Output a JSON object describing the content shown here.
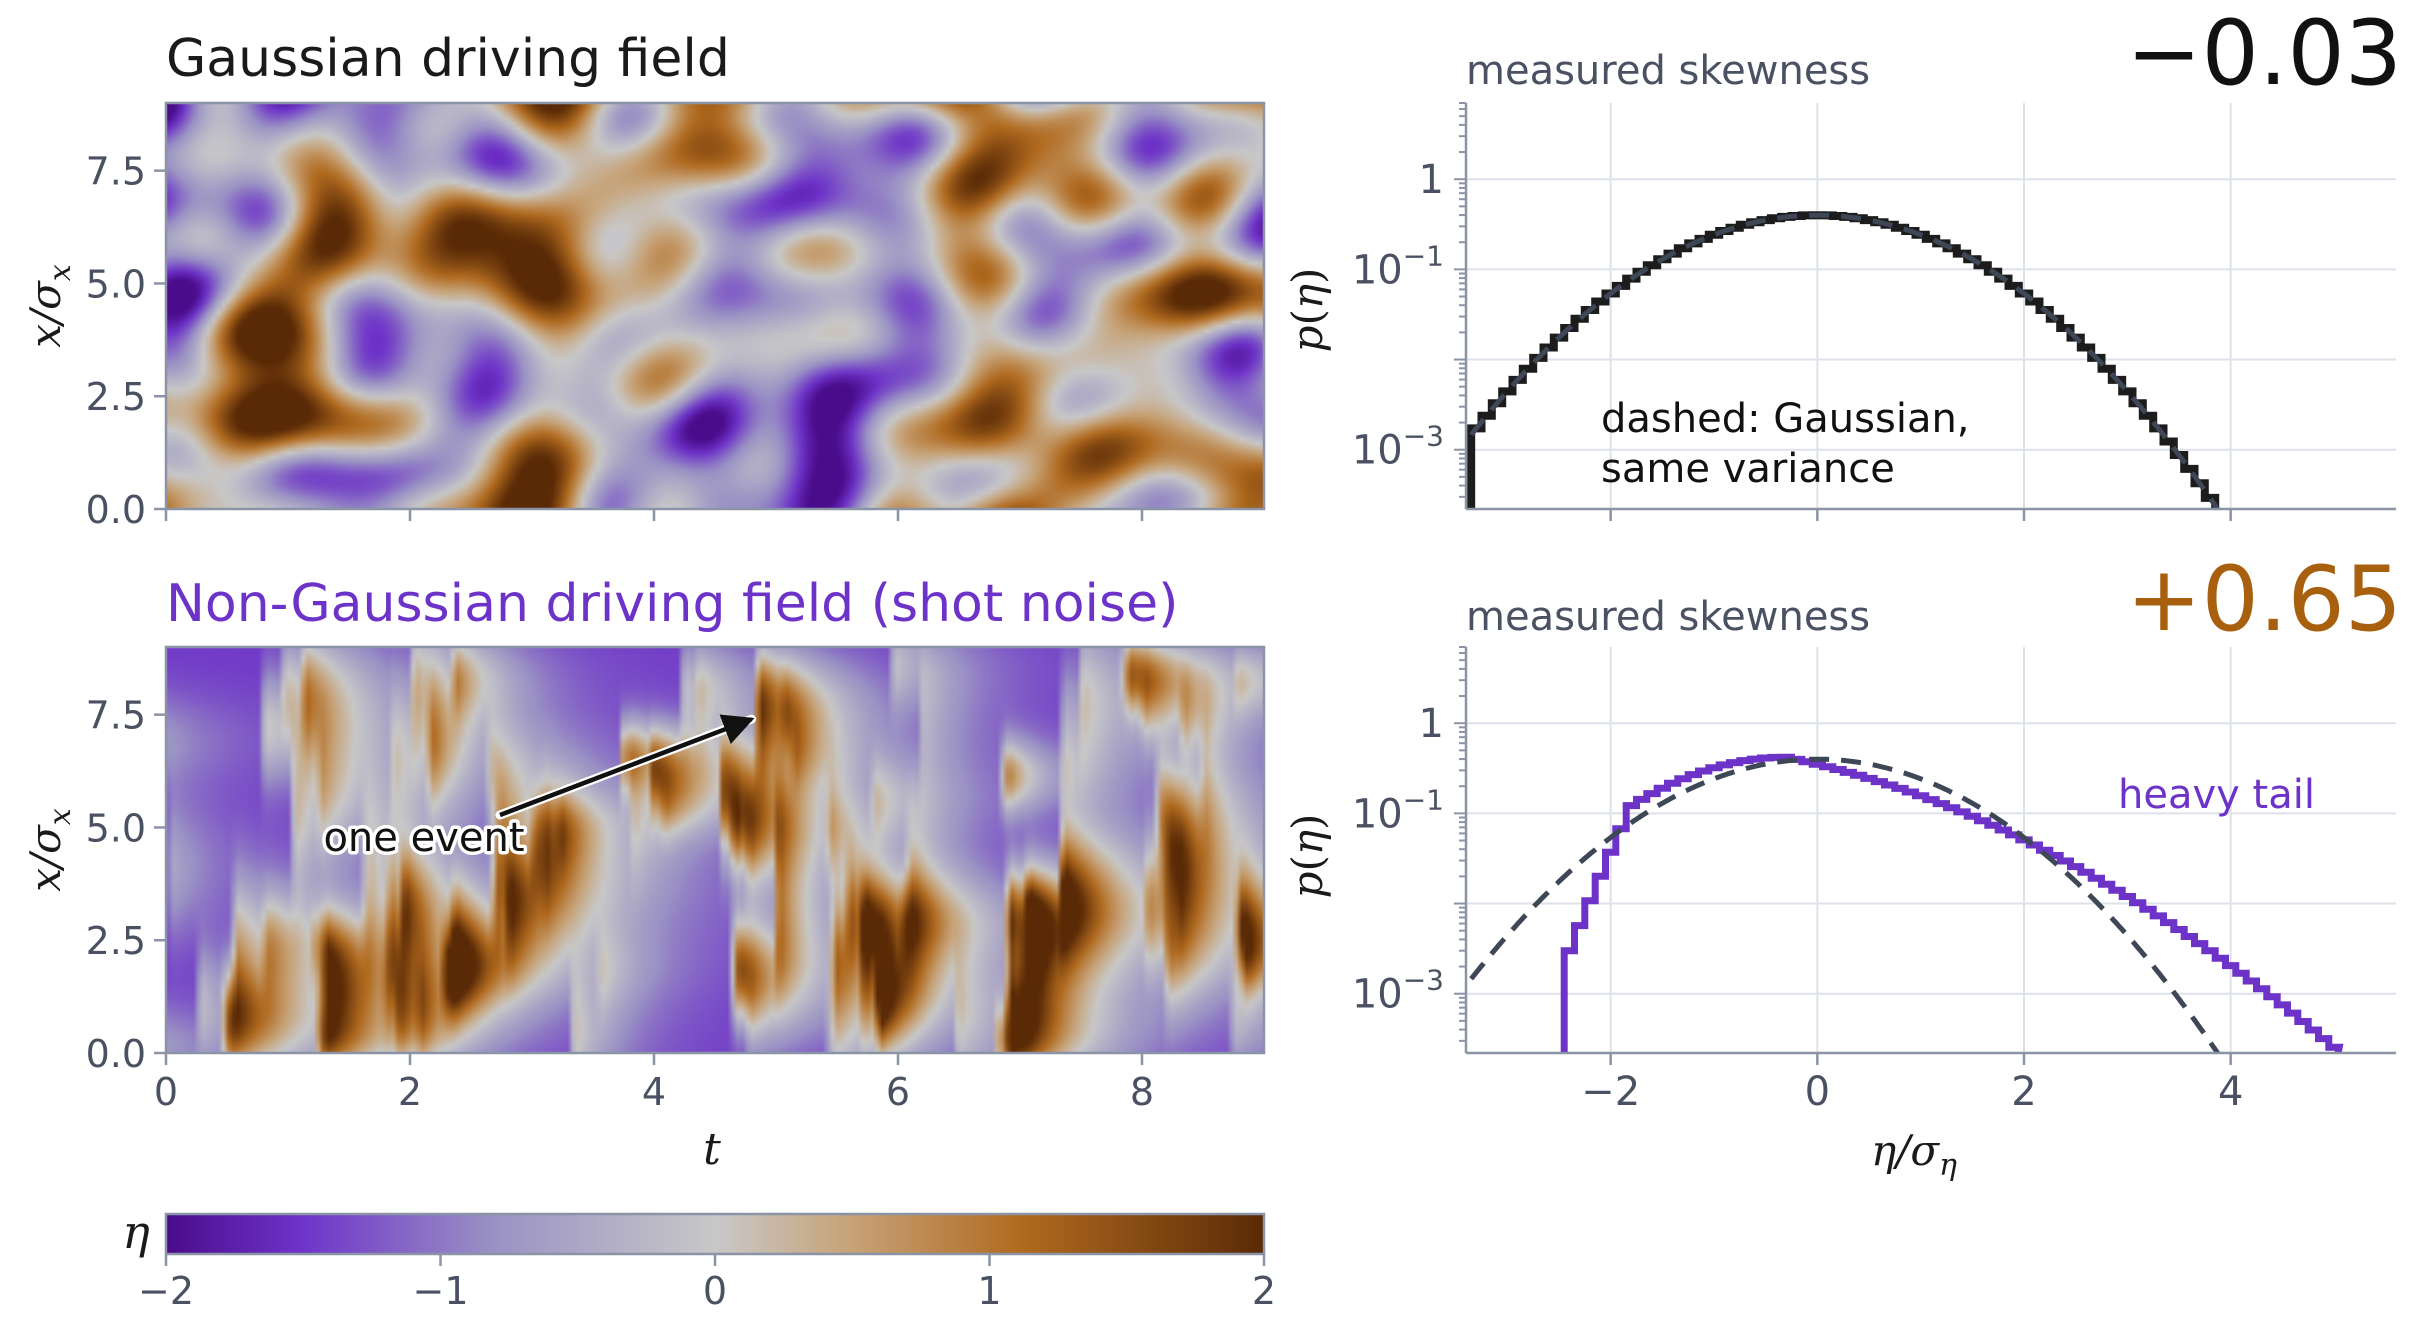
{
  "colors": {
    "diverging_low": "#5b1aa6",
    "diverging_mid": "#c8c8c8",
    "diverging_high": "#6b3208",
    "purple_accent": "#6d32c8",
    "orange_accent": "#a8600f",
    "gaussian_line": "#1c1c1c",
    "dashed_line": "#3e4756",
    "axis": "#8a94a6",
    "grid": "#dde1ea",
    "text_gray": "#4a5162"
  },
  "chart_data": [
    {
      "type": "heatmap",
      "title": "Gaussian driving field",
      "xlabel": "",
      "ylabel": "x/σ_x",
      "ylabel_main": "x/σ",
      "ylabel_sub": "x",
      "xlim": [
        0,
        9
      ],
      "ylim": [
        0,
        9
      ],
      "xticks": [
        0,
        2,
        4,
        6,
        8
      ],
      "yticks": [
        0,
        2.5,
        5,
        7.5
      ],
      "ytick_labels": [
        "0.0",
        "2.5",
        "5.0",
        "7.5"
      ],
      "field": "gaussian",
      "annotation": null
    },
    {
      "type": "heatmap",
      "title": "Non-Gaussian driving field  (shot noise)",
      "xlabel": "t",
      "ylabel": "x/σ_x",
      "ylabel_main": "x/σ",
      "ylabel_sub": "x",
      "xlim": [
        0,
        9
      ],
      "ylim": [
        0,
        9
      ],
      "xticks": [
        0,
        2,
        4,
        6,
        8
      ],
      "xtick_labels": [
        "0",
        "2",
        "4",
        "6",
        "8"
      ],
      "yticks": [
        0,
        2.5,
        5,
        7.5
      ],
      "ytick_labels": [
        "0.0",
        "2.5",
        "5.0",
        "7.5"
      ],
      "field": "shot-noise",
      "annotation": {
        "text": "one event",
        "from": [
          1.5,
          5.0
        ],
        "to": [
          4.8,
          7.4
        ]
      }
    },
    {
      "type": "line",
      "subtitle": "measured skewness",
      "skewness": "−0.03",
      "xlabel": "",
      "ylabel": "p(η)",
      "ylabel_func": "p",
      "ylabel_var": "η",
      "ylog": true,
      "xlim": [
        -3.4,
        5.6
      ],
      "ylim": [
        0.00022,
        7
      ],
      "xticks": [
        -2,
        0,
        2,
        4
      ],
      "yticks": [
        1,
        0.1,
        0.01,
        0.001
      ],
      "ytick_labels": [
        {
          "base": "1",
          "exp": ""
        },
        {
          "base": "10",
          "exp": "−1"
        },
        {
          "base": "",
          "exp": ""
        },
        {
          "base": "10",
          "exp": "−3"
        }
      ],
      "annotation": {
        "line1": "dashed: Gaussian,",
        "line2": "same variance"
      },
      "series": [
        {
          "kind": "step",
          "x_start": -3.35,
          "x_end": 3.95,
          "step": 0.1,
          "shape": "gaussian",
          "peak": 0.399
        },
        {
          "kind": "dashed",
          "x_start": -3.35,
          "x_end": 4.0,
          "shape": "gaussian",
          "peak": 0.399
        }
      ]
    },
    {
      "type": "line",
      "subtitle": "measured skewness",
      "skewness": "+0.65",
      "xlabel": "η/σ_η",
      "xlabel_main": "η/σ",
      "xlabel_sub": "η",
      "ylabel": "p(η)",
      "ylabel_func": "p",
      "ylabel_var": "η",
      "ylog": true,
      "xlim": [
        -3.4,
        5.6
      ],
      "ylim": [
        0.00022,
        7
      ],
      "xticks": [
        -2,
        0,
        2,
        4
      ],
      "xtick_labels": [
        "−2",
        "0",
        "2",
        "4"
      ],
      "yticks": [
        1,
        0.1,
        0.01,
        0.001
      ],
      "ytick_labels": [
        {
          "base": "1",
          "exp": ""
        },
        {
          "base": "10",
          "exp": "−1"
        },
        {
          "base": "",
          "exp": ""
        },
        {
          "base": "10",
          "exp": "−3"
        }
      ],
      "annotation": {
        "line1": "heavy tail",
        "line2": ""
      },
      "series": [
        {
          "kind": "step",
          "x_start": -2.45,
          "x_end": 5.0,
          "step": 0.1,
          "shape": "skewed",
          "peak": 0.42
        },
        {
          "kind": "dashed",
          "x_start": -3.35,
          "x_end": 3.9,
          "shape": "gaussian",
          "peak": 0.399
        }
      ]
    }
  ],
  "colorbar": {
    "label": "η",
    "min": -2,
    "max": 2,
    "ticks": [
      -2,
      -1,
      0,
      1,
      2
    ],
    "tick_labels": [
      "−2",
      "−1",
      "0",
      "1",
      "2"
    ]
  }
}
